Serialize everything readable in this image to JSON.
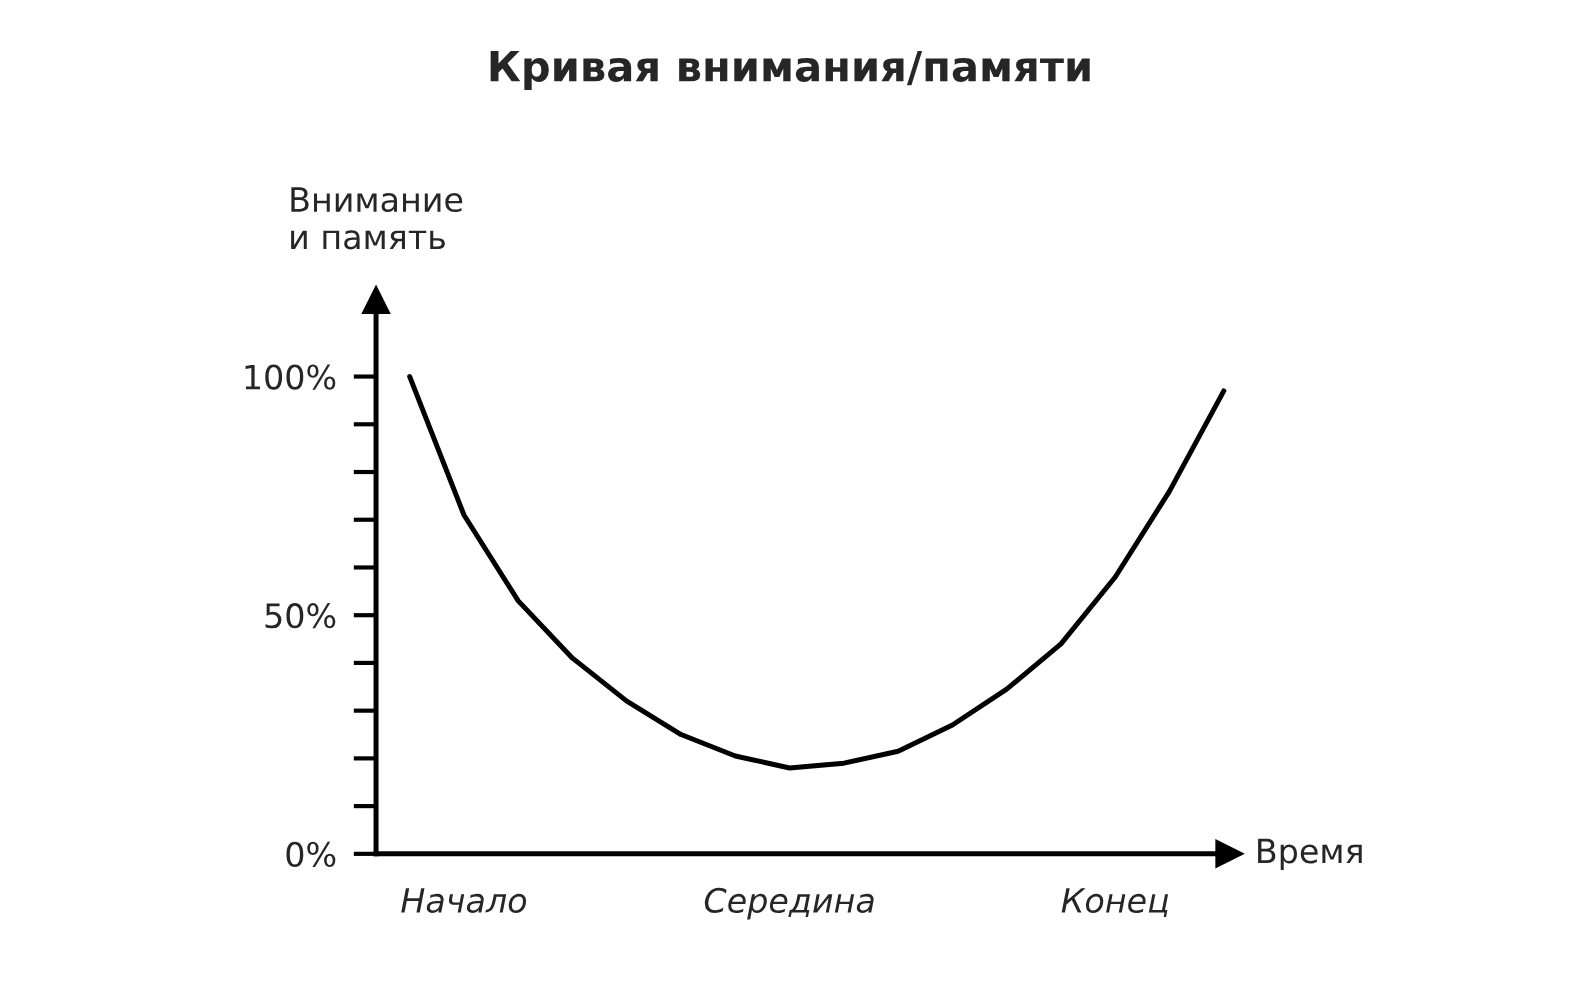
{
  "chart_data": {
    "type": "line",
    "title": "Кривая внимания/памяти",
    "xlabel": "Время",
    "ylabel": "Внимание\nи память",
    "ylim": [
      0,
      116
    ],
    "categories": [
      null,
      "Начало",
      null,
      null,
      null,
      null,
      null,
      "Середина",
      null,
      null,
      null,
      null,
      null,
      "Конец",
      null,
      null
    ],
    "yticks": [
      {
        "value": 0,
        "label": "0%"
      },
      {
        "value": 10,
        "label": null
      },
      {
        "value": 20,
        "label": null
      },
      {
        "value": 30,
        "label": null
      },
      {
        "value": 40,
        "label": null
      },
      {
        "value": 50,
        "label": "50%"
      },
      {
        "value": 60,
        "label": null
      },
      {
        "value": 70,
        "label": null
      },
      {
        "value": 80,
        "label": null
      },
      {
        "value": 90,
        "label": null
      },
      {
        "value": 100,
        "label": "100%"
      }
    ],
    "grid": false,
    "legend": false,
    "marker": "none",
    "line_style": "solid",
    "series": [
      {
        "color": "#000000",
        "values": [
          100,
          71,
          53,
          41,
          32,
          25,
          20.5,
          18,
          19,
          21.5,
          27,
          34.5,
          44,
          58,
          76,
          97
        ]
      }
    ]
  }
}
